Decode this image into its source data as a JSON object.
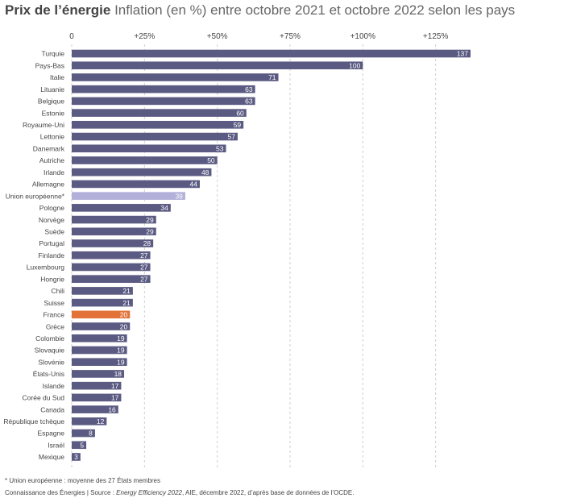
{
  "header": {
    "title_bold": "Prix de l’énergie",
    "title_rest": " Inflation (en %) entre octobre 2021 et octobre 2022 selon les pays"
  },
  "colors": {
    "bar": "#5a5a82",
    "eu": "#b2afd8",
    "france": "#e27238",
    "grid": "#cfcfcf"
  },
  "chart_data": {
    "type": "bar",
    "orientation": "horizontal",
    "title": "Prix de l’énergie — Inflation (en %) entre octobre 2021 et octobre 2022 selon les pays",
    "xlim": [
      0,
      137
    ],
    "xticks": [
      0,
      25,
      50,
      75,
      100,
      125
    ],
    "xtick_labels": [
      "0",
      "+25%",
      "+50%",
      "+75%",
      "+100%",
      "+125%"
    ],
    "grid": "vertical dashed",
    "categories": [
      "Turquie",
      "Pays-Bas",
      "Italie",
      "Lituanie",
      "Belgique",
      "Estonie",
      "Royaume-Uni",
      "Lettonie",
      "Danemark",
      "Autriche",
      "Irlande",
      "Allemagne",
      "Union européenne*",
      "Pologne",
      "Norvège",
      "Suède",
      "Portugal",
      "Finlande",
      "Luxembourg",
      "Hongrie",
      "Chili",
      "Suisse",
      "France",
      "Grèce",
      "Colombie",
      "Slovaquie",
      "Slovénie",
      "États-Unis",
      "Islande",
      "Corée du Sud",
      "Canada",
      "République tchèque",
      "Espagne",
      "Israël",
      "Mexique"
    ],
    "values": [
      137,
      100,
      71,
      63,
      63,
      60,
      59,
      57,
      53,
      50,
      48,
      44,
      39,
      34,
      29,
      29,
      28,
      27,
      27,
      27,
      21,
      21,
      20,
      20,
      19,
      19,
      19,
      18,
      17,
      17,
      16,
      12,
      8,
      5,
      3
    ],
    "highlights": {
      "Union européenne*": "eu",
      "France": "france"
    }
  },
  "footer": {
    "footnote": "*   Union européenne : moyenne des 27 États membres",
    "source_a": "Connaissance des Énergies | Source : ",
    "source_italic": "Energy Efficiency 2022",
    "source_b": ", AIE, décembre 2022, d’après base de données de l’OCDE."
  }
}
